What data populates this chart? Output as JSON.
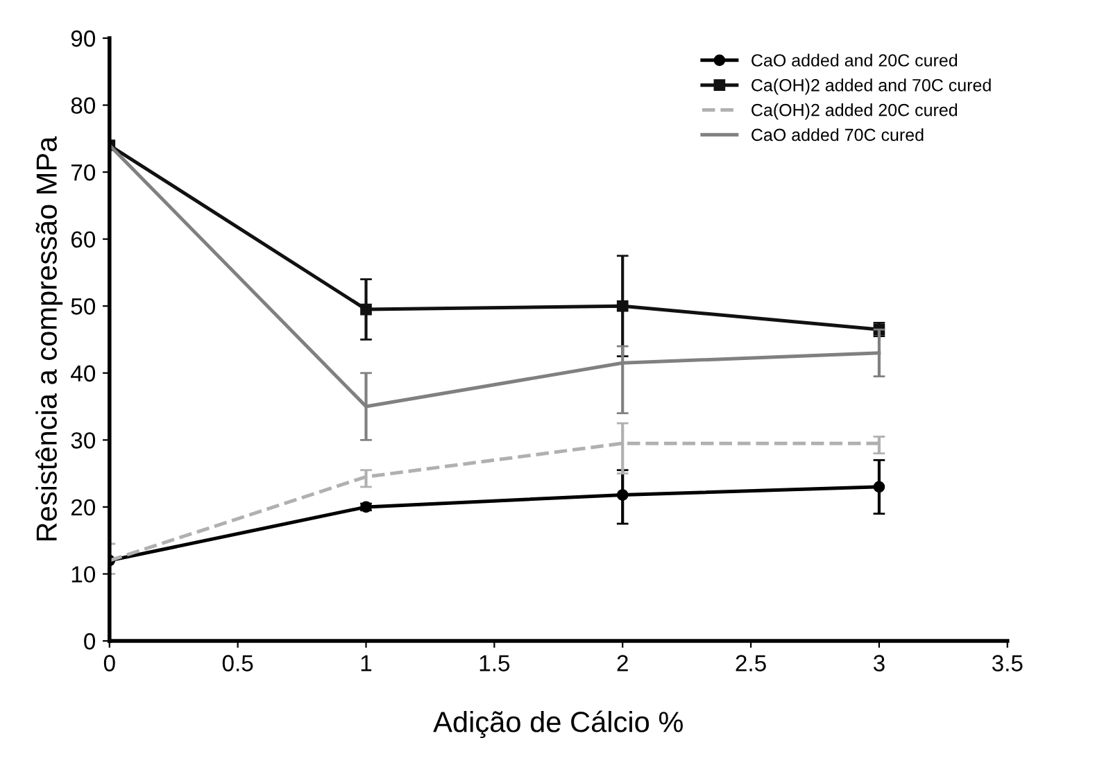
{
  "chart_data": {
    "type": "line",
    "xlabel": "Adição de Cálcio %",
    "ylabel": "Resistência a compressão MPa",
    "x": [
      0,
      1,
      2,
      3
    ],
    "series": [
      {
        "name": "CaO added and 20C cured",
        "color": "#000000",
        "marker": "circle",
        "line_style": "solid",
        "values": [
          12,
          20,
          21.8,
          23
        ],
        "errors": [
          null,
          0.5,
          [
            17.5,
            25.5
          ],
          [
            19,
            27
          ]
        ]
      },
      {
        "name": "Ca(OH)2 added and 70C cured",
        "color": "#111111",
        "marker": "square",
        "line_style": "solid",
        "values": [
          74,
          49.5,
          50,
          46.5
        ],
        "errors": [
          null,
          [
            45,
            54
          ],
          [
            42.5,
            57.5
          ],
          [
            45.5,
            47.5
          ]
        ]
      },
      {
        "name": "Ca(OH)2 added 20C cured",
        "color": "#b0b0b0",
        "marker": "none",
        "line_style": "dashed",
        "values": [
          12,
          24.5,
          29.5,
          29.5
        ],
        "errors": [
          [
            10,
            14.5
          ],
          [
            23,
            25.5
          ],
          [
            25,
            32.5
          ],
          [
            28,
            30.5
          ]
        ]
      },
      {
        "name": "CaO added 70C cured",
        "color": "#808080",
        "marker": "none",
        "line_style": "solid",
        "values": [
          74,
          35,
          41.5,
          43
        ],
        "errors": [
          null,
          [
            30,
            40
          ],
          [
            34,
            44
          ],
          [
            39.5,
            46.5
          ]
        ]
      }
    ],
    "xlim": [
      0,
      3.5
    ],
    "xticks": [
      0,
      0.5,
      1,
      1.5,
      2,
      2.5,
      3,
      3.5
    ],
    "ylim": [
      0,
      90
    ],
    "yticks": [
      0,
      10,
      20,
      30,
      40,
      50,
      60,
      70,
      80,
      90
    ],
    "grid": false,
    "legend": "top right"
  }
}
